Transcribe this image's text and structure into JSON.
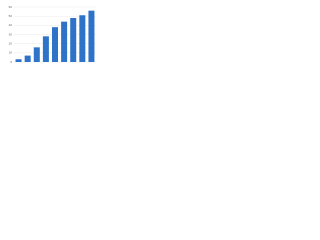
{
  "chart_data": {
    "type": "bar",
    "categories": [
      null,
      null,
      null,
      null,
      null,
      null,
      null,
      null,
      null
    ],
    "values": [
      3,
      7,
      16,
      28,
      38,
      44,
      48,
      51,
      56
    ],
    "color": "#2f73c9",
    "ylim": [
      0,
      60
    ],
    "yticks": [
      0,
      10,
      20,
      30,
      40,
      50,
      60
    ],
    "grid": true
  }
}
